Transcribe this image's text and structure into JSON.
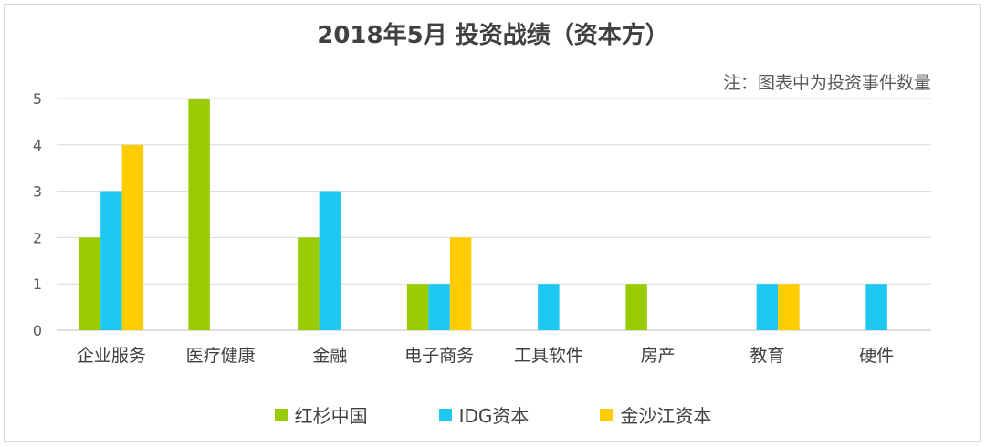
{
  "chart_data": {
    "type": "bar",
    "title": "2018年5月 投资战绩（资本方）",
    "note": "注：图表中为投资事件数量",
    "categories": [
      "企业服务",
      "医疗健康",
      "金融",
      "电子商务",
      "工具软件",
      "房产",
      "教育",
      "硬件"
    ],
    "series": [
      {
        "name": "红杉中国",
        "color": "#99cc00",
        "values": [
          2,
          5,
          2,
          1,
          0,
          1,
          0,
          0
        ]
      },
      {
        "name": "IDG资本",
        "color": "#1ec8f0",
        "values": [
          3,
          0,
          3,
          1,
          1,
          0,
          1,
          1
        ]
      },
      {
        "name": "金沙江资本",
        "color": "#ffcc00",
        "values": [
          4,
          0,
          0,
          2,
          0,
          0,
          1,
          0
        ]
      }
    ],
    "ylim": [
      0,
      5
    ],
    "yticks": [
      0,
      1,
      2,
      3,
      4,
      5
    ],
    "grid": true,
    "legend_position": "bottom"
  }
}
